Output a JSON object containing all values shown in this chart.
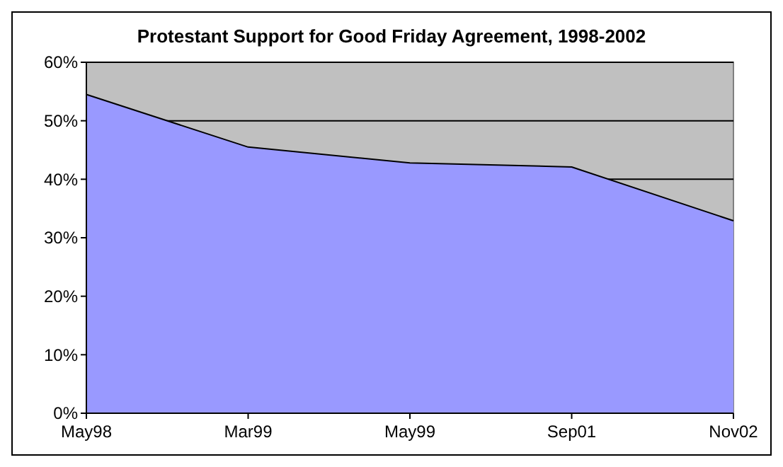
{
  "chart_data": {
    "type": "area",
    "title": "Protestant Support for Good Friday Agreement, 1998-2002",
    "categories": [
      "May98",
      "Mar99",
      "May99",
      "Sep01",
      "Nov02"
    ],
    "series": [
      {
        "color": "#9999ff",
        "values": [
          54.5,
          45.5,
          42.8,
          42.1,
          32.9
        ]
      }
    ],
    "ylim": [
      0,
      60
    ],
    "yticks": [
      {
        "value": 0,
        "label": "0%"
      },
      {
        "value": 10,
        "label": "10%"
      },
      {
        "value": 20,
        "label": "20%"
      },
      {
        "value": 30,
        "label": "30%"
      },
      {
        "value": 40,
        "label": "40%"
      },
      {
        "value": 50,
        "label": "50%"
      },
      {
        "value": 60,
        "label": "60%"
      }
    ],
    "grid": "y"
  }
}
